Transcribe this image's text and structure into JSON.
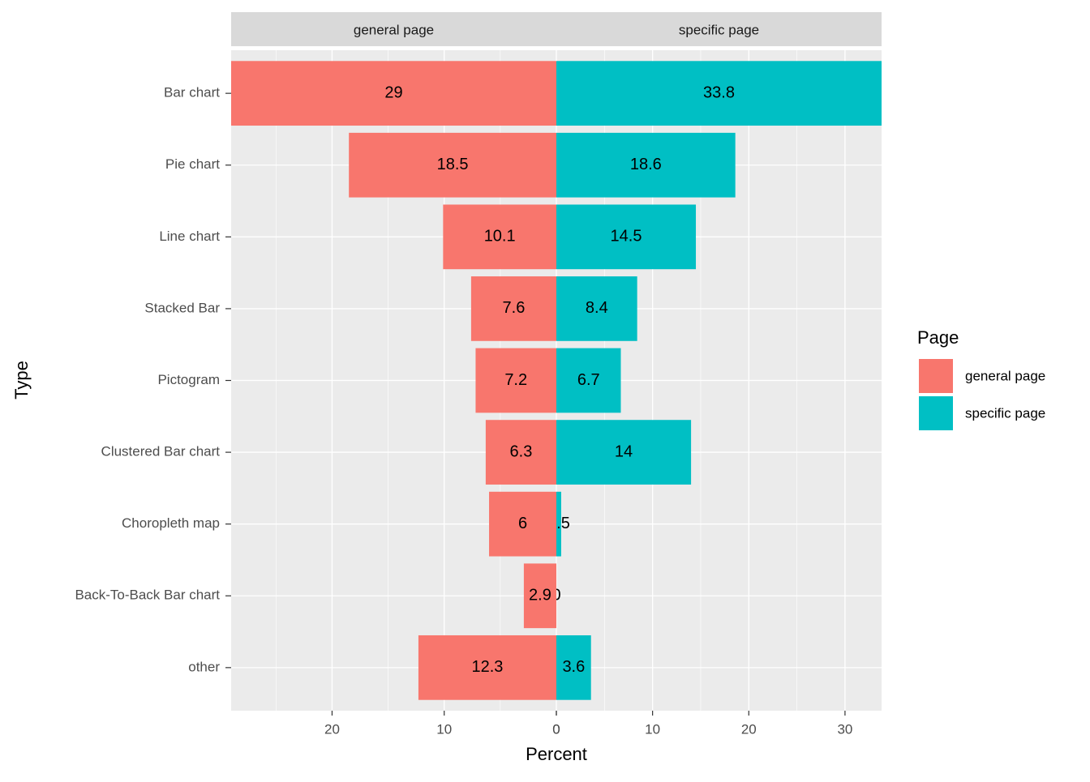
{
  "chart_data": {
    "type": "bar",
    "orientation": "horizontal",
    "x_label": "Percent",
    "y_label": "Type",
    "legend_title": "Page",
    "grid": true,
    "categories": [
      "Bar chart",
      "Pie chart",
      "Line chart",
      "Stacked Bar",
      "Pictogram",
      "Clustered Bar chart",
      "Choropleth map",
      "Back-To-Back Bar chart",
      "other"
    ],
    "series": [
      {
        "name": "general page",
        "color": "#f8766d",
        "values": [
          29,
          18.5,
          10.1,
          7.6,
          7.2,
          6.3,
          6,
          2.9,
          12.3
        ],
        "xlim": [
          29,
          0
        ],
        "xticks": [
          20,
          10,
          0
        ],
        "minor_xticks": [
          25,
          15,
          5
        ]
      },
      {
        "name": "specific page",
        "color": "#00bfc4",
        "values": [
          33.8,
          18.6,
          14.5,
          8.4,
          6.7,
          14,
          0.5,
          0,
          3.6
        ],
        "xlim": [
          0,
          33.8
        ],
        "xticks": [
          0,
          10,
          20,
          30
        ],
        "minor_xticks": [
          5,
          15,
          25
        ]
      }
    ]
  }
}
